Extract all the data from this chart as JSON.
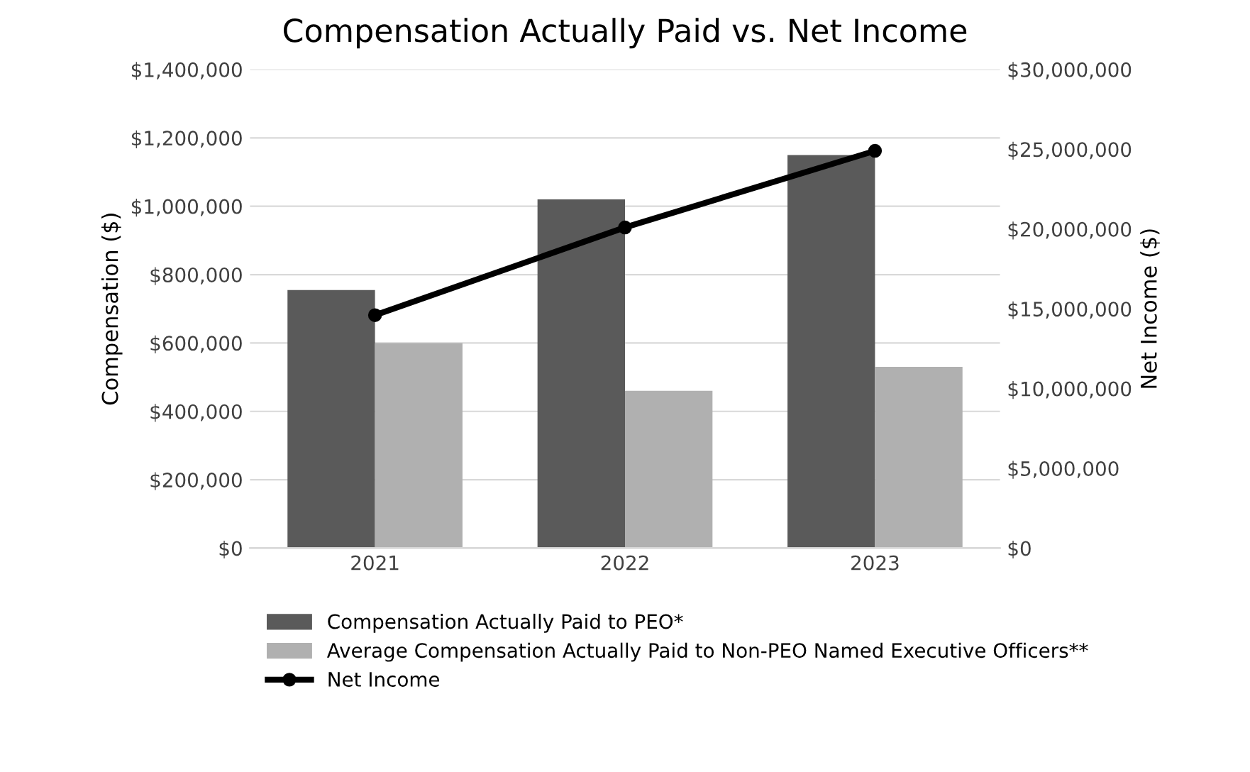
{
  "chart_data": {
    "type": "bar",
    "title": "Compensation Actually Paid vs. Net Income",
    "ylabel": "Compensation ($)",
    "y2label": "Net Income ($)",
    "categories": [
      "2021",
      "2022",
      "2023"
    ],
    "series": [
      {
        "name": "Compensation Actually Paid to PEO*",
        "color": "#5a5a5a",
        "values": [
          755000,
          1020000,
          1150000
        ]
      },
      {
        "name": "Average Compensation Actually Paid to Non-PEO Named Executive Officers**",
        "color": "#b0b0b0",
        "values": [
          600000,
          460000,
          530000
        ]
      },
      {
        "name": "Net Income",
        "type": "line",
        "axis": "y2",
        "color": "#000000",
        "marker": "circle",
        "values": [
          14600000,
          20100000,
          24900000
        ]
      }
    ],
    "ylim": [
      0,
      1400000
    ],
    "yticks": [
      {
        "value": 0,
        "label": "$0"
      },
      {
        "value": 200000,
        "label": "$200,000"
      },
      {
        "value": 400000,
        "label": "$400,000"
      },
      {
        "value": 600000,
        "label": "$600,000"
      },
      {
        "value": 800000,
        "label": "$800,000"
      },
      {
        "value": 1000000,
        "label": "$1,000,000"
      },
      {
        "value": 1200000,
        "label": "$1,200,000"
      },
      {
        "value": 1400000,
        "label": "$1,400,000"
      }
    ],
    "y2lim": [
      0,
      30000000
    ],
    "y2ticks": [
      {
        "value": 0,
        "label": "$0"
      },
      {
        "value": 5000000,
        "label": "$5,000,000"
      },
      {
        "value": 10000000,
        "label": "$10,000,000"
      },
      {
        "value": 15000000,
        "label": "$15,000,000"
      },
      {
        "value": 20000000,
        "label": "$20,000,000"
      },
      {
        "value": 25000000,
        "label": "$25,000,000"
      },
      {
        "value": 30000000,
        "label": "$30,000,000"
      }
    ],
    "grid": "y",
    "legend": "bottom"
  }
}
